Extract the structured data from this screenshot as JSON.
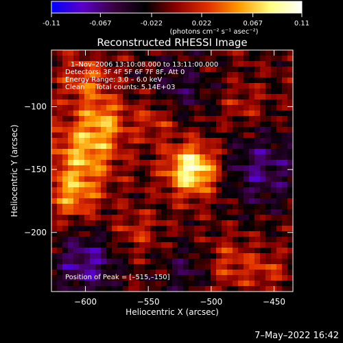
{
  "colorbar": {
    "ticks": [
      "-0.11",
      "-0.067",
      "-0.022",
      "0.022",
      "0.067",
      "0.11"
    ],
    "tick_values": [
      -0.11,
      -0.067,
      -0.022,
      0.022,
      0.067,
      0.11
    ],
    "range": [
      -0.11,
      0.11
    ],
    "unit_label": "(photons cm⁻² s⁻¹ asec⁻²)",
    "stops": [
      "#0000ff",
      "#5a00c8",
      "#3a0040",
      "#000000",
      "#8b0000",
      "#e03000",
      "#ff9a00",
      "#ffff80",
      "#ffffff"
    ]
  },
  "chart_data": {
    "type": "heatmap",
    "title": "Reconstructed RHESSI Image",
    "xlabel": "Heliocentric X (arcsec)",
    "ylabel": "Heliocentric Y (arcsec)",
    "xlim": [
      -627,
      -435
    ],
    "ylim": [
      -247,
      -55
    ],
    "x_ticks": [
      -600,
      -550,
      -500,
      -450
    ],
    "y_ticks": [
      -100,
      -150,
      -200
    ],
    "grid": false,
    "info_lines": [
      "1–Nov–2006 13:10:08.000 to 13:11:00.000",
      "Detectors: 3F 4F 5F 6F 7F 8F, Att 0",
      "Energy Range: 3.0 – 6.0 keV",
      "Clean     Total counts: 5.14E+03"
    ],
    "peak_label": "Position of Peak = [–515,–150]",
    "peak": [
      -515,
      -150
    ],
    "intensity_range": [
      -0.11,
      0.11
    ],
    "sources": [
      {
        "x": -515,
        "y": -150,
        "peak": 0.11,
        "width": 14
      },
      {
        "x": -600,
        "y": -135,
        "peak": 0.07,
        "width": 18
      },
      {
        "x": -610,
        "y": -170,
        "peak": 0.06,
        "width": 14
      },
      {
        "x": -585,
        "y": -110,
        "peak": 0.05,
        "width": 12
      },
      {
        "x": -600,
        "y": -80,
        "peak": 0.045,
        "width": 14
      },
      {
        "x": -545,
        "y": -110,
        "peak": 0.035,
        "width": 12
      },
      {
        "x": -560,
        "y": -200,
        "peak": 0.03,
        "width": 12
      },
      {
        "x": -485,
        "y": -225,
        "peak": 0.035,
        "width": 14
      },
      {
        "x": -475,
        "y": -100,
        "peak": 0.025,
        "width": 12
      },
      {
        "x": -455,
        "y": -230,
        "peak": 0.03,
        "width": 10
      },
      {
        "x": -600,
        "y": -225,
        "peak": -0.06,
        "width": 18
      },
      {
        "x": -525,
        "y": -85,
        "peak": -0.035,
        "width": 18
      },
      {
        "x": -460,
        "y": -150,
        "peak": -0.05,
        "width": 22
      },
      {
        "x": -520,
        "y": -230,
        "peak": -0.035,
        "width": 14
      }
    ]
  },
  "footer": {
    "date_time": "7–May–2022 16:42"
  }
}
